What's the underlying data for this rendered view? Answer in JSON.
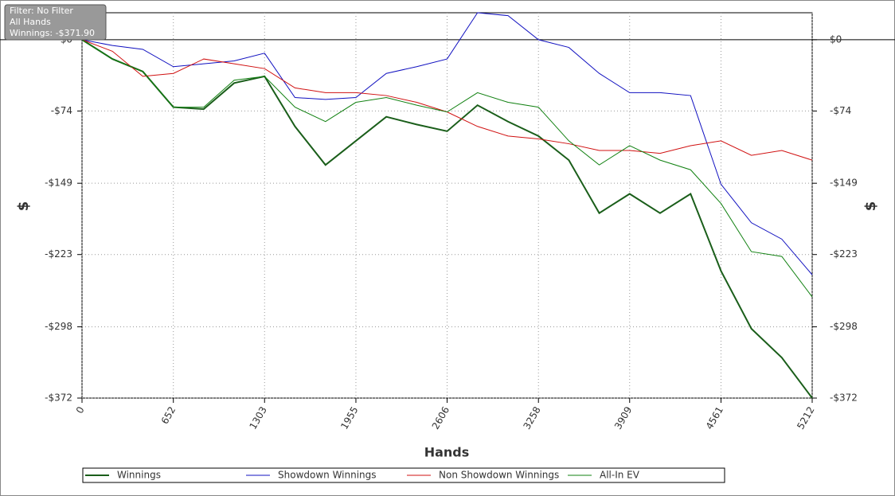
{
  "info": {
    "filter": "Filter: No Filter",
    "hands": "All Hands",
    "winnings": "Winnings: -$371.90"
  },
  "chart_data": {
    "type": "line",
    "xlabel": "Hands",
    "ylabel": "$",
    "x": [
      0,
      217,
      434,
      652,
      869,
      1086,
      1303,
      1520,
      1738,
      1955,
      2172,
      2389,
      2606,
      2823,
      3041,
      3258,
      3475,
      3692,
      3909,
      4126,
      4344,
      4561,
      4778,
      4995,
      5212
    ],
    "series": [
      {
        "name": "Winnings",
        "color": "#1a5e1a",
        "width": 2,
        "values": [
          0,
          -20,
          -33,
          -70,
          -72,
          -45,
          -38,
          -90,
          -130,
          -105,
          -80,
          -88,
          -95,
          -68,
          -85,
          -100,
          -125,
          -180,
          -160,
          -180,
          -160,
          -240,
          -300,
          -330,
          -372
        ]
      },
      {
        "name": "Showdown Winnings",
        "color": "#1010c0",
        "width": 1,
        "values": [
          0,
          -6,
          -10,
          -28,
          -25,
          -22,
          -14,
          -60,
          -62,
          -60,
          -35,
          -28,
          -20,
          28,
          25,
          0,
          -8,
          -35,
          -55,
          -55,
          -58,
          -150,
          -190,
          -207,
          -244
        ]
      },
      {
        "name": "Non Showdown Winnings",
        "color": "#d01010",
        "width": 1,
        "values": [
          0,
          -12,
          -38,
          -35,
          -20,
          -25,
          -30,
          -50,
          -55,
          -55,
          -58,
          -65,
          -75,
          -90,
          -100,
          -103,
          -108,
          -115,
          -115,
          -118,
          -110,
          -105,
          -120,
          -115,
          -125
        ]
      },
      {
        "name": "All-In EV",
        "color": "#108010",
        "width": 1,
        "values": [
          0,
          -20,
          -33,
          -70,
          -70,
          -42,
          -38,
          -70,
          -85,
          -65,
          -60,
          -68,
          -75,
          -55,
          -65,
          -70,
          -105,
          -130,
          -110,
          -125,
          -135,
          -170,
          -220,
          -225,
          -267
        ]
      }
    ],
    "xlim": [
      0,
      5212
    ],
    "xticks": [
      0,
      652,
      1303,
      1955,
      2606,
      3258,
      3909,
      4561,
      5212
    ],
    "ylim": [
      -372,
      28
    ],
    "yticks": [
      {
        "value": 0,
        "label": "$0"
      },
      {
        "value": -74,
        "label": "-$74"
      },
      {
        "value": -149,
        "label": "-$149"
      },
      {
        "value": -223,
        "label": "-$223"
      },
      {
        "value": -298,
        "label": "-$298"
      },
      {
        "value": -372,
        "label": "-$372"
      }
    ],
    "grid": true
  }
}
